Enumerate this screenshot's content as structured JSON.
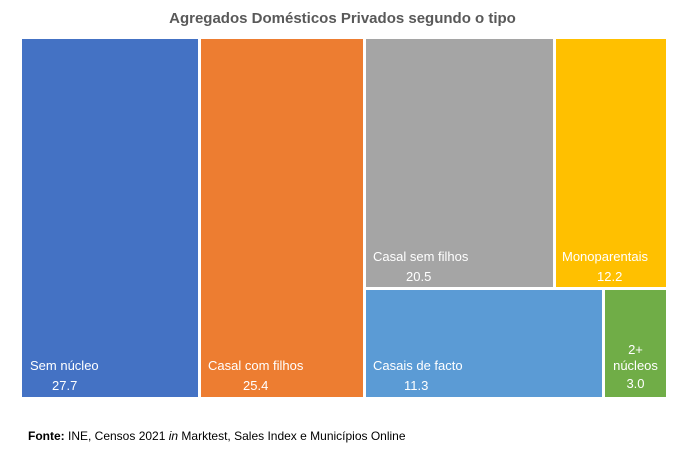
{
  "chart_data": {
    "type": "treemap",
    "title": "Agregados Domésticos Privados segundo o tipo",
    "items": [
      {
        "name": "Sem núcleo",
        "value": 27.7,
        "color": "#4472C4"
      },
      {
        "name": "Casal com filhos",
        "value": 25.4,
        "color": "#ED7D31"
      },
      {
        "name": "Casal sem filhos",
        "value": 20.5,
        "color": "#A5A5A5"
      },
      {
        "name": "Monoparentais",
        "value": 12.2,
        "color": "#FFC000"
      },
      {
        "name": "Casais de facto",
        "value": 11.3,
        "color": "#5B9BD5"
      },
      {
        "name": "2+ núcleos",
        "value": 3.0,
        "color": "#70AD47"
      }
    ]
  },
  "source": {
    "label": "Fonte:",
    "text_before": "INE, Censos 2021",
    "text_italic": "in",
    "text_after": "Marktest, Sales Index e Municípios Online"
  }
}
